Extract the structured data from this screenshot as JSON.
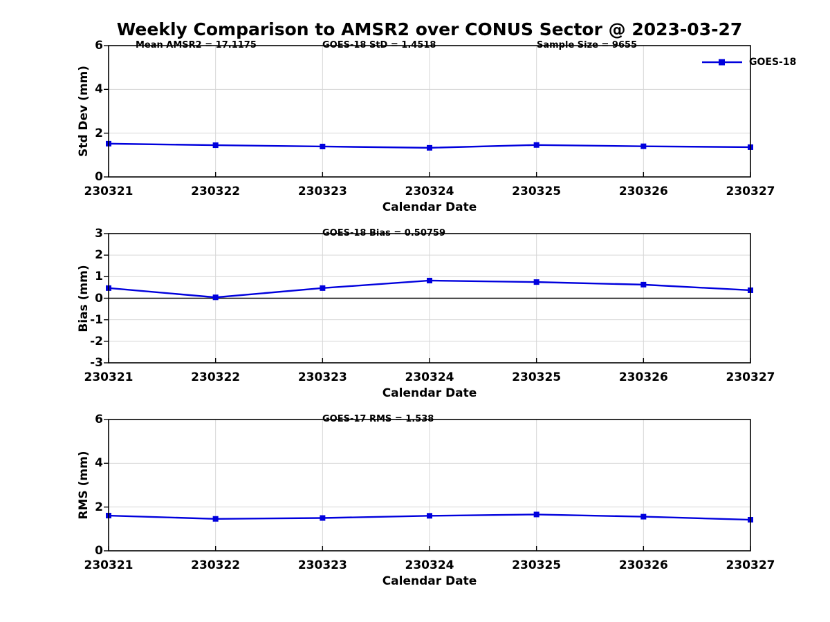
{
  "title": "Weekly Comparison to AMSR2 over CONUS Sector @ 2023-03-27",
  "legend": {
    "label": "GOES-18"
  },
  "colors": {
    "line": "#0000DD",
    "grid": "#D6D6D6",
    "axis": "#000000",
    "zero_line": "#000000"
  },
  "chart_data": {
    "type": "line",
    "x_categories": [
      "230321",
      "230322",
      "230323",
      "230324",
      "230325",
      "230326",
      "230327"
    ],
    "xlabel": "Calendar Date",
    "legend_entries": [
      "GOES-18"
    ],
    "legend_position": "top-right",
    "grid": true,
    "marker": "square",
    "panels": [
      {
        "id": "std-dev",
        "ylabel": "Std Dev (mm)",
        "ylim": [
          0,
          6
        ],
        "yticks": [
          0,
          2,
          4,
          6
        ],
        "annotations": [
          "Mean AMSR2 = 17.1175",
          "GOES-18 StD = 1.4518",
          "Sample Size = 9655"
        ],
        "zero_line": false,
        "series": [
          {
            "name": "GOES-18",
            "values": [
              1.52,
              1.45,
              1.39,
              1.33,
              1.46,
              1.4,
              1.36
            ]
          }
        ]
      },
      {
        "id": "bias",
        "ylabel": "Bias (mm)",
        "ylim": [
          -3,
          3
        ],
        "yticks": [
          -3,
          -2,
          -1,
          0,
          1,
          2,
          3
        ],
        "annotations": [
          "GOES-18 Bias  = 0.50759"
        ],
        "zero_line": true,
        "series": [
          {
            "name": "GOES-18",
            "values": [
              0.47,
              0.04,
              0.47,
              0.82,
              0.75,
              0.63,
              0.37
            ]
          }
        ]
      },
      {
        "id": "rms",
        "ylabel": "RMS (mm)",
        "ylim": [
          0,
          6
        ],
        "yticks": [
          0,
          2,
          4,
          6
        ],
        "annotations": [
          "GOES-17 RMS = 1.538"
        ],
        "zero_line": false,
        "series": [
          {
            "name": "GOES-18",
            "values": [
              1.61,
              1.46,
              1.5,
              1.6,
              1.66,
              1.56,
              1.42
            ]
          }
        ]
      }
    ]
  }
}
